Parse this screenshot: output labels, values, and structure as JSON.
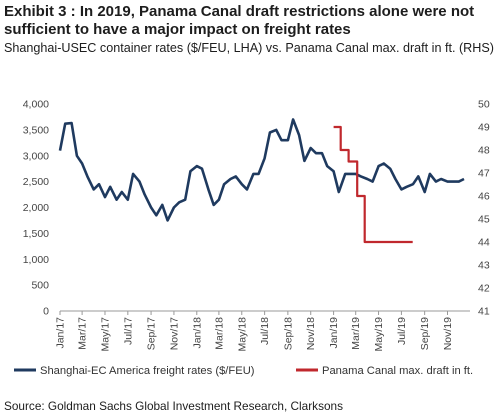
{
  "title": "Exhibit 3 : In 2019, Panama Canal draft restrictions alone were not sufficient to have a major impact on freight rates",
  "subtitle": "Shanghai-USEC container rates ($/FEU, LHA) vs. Panama Canal max. draft in ft. (RHS)",
  "source": "Source: Goldman Sachs Global Investment Research, Clarksons",
  "colors": {
    "freight": "#1f3a5f",
    "draft": "#c0282d",
    "axis": "#999999"
  },
  "chart_data": {
    "type": "line",
    "x_tick_labels": [
      "Jan/17",
      "Mar/17",
      "May/17",
      "Jul/17",
      "Sep/17",
      "Nov/17",
      "Jan/18",
      "Mar/18",
      "May/18",
      "Jul/18",
      "Sep/18",
      "Nov/18",
      "Jan/19",
      "Mar/19",
      "May/19",
      "Jul/19",
      "Sep/19",
      "Nov/19"
    ],
    "y_left": {
      "ticks": [
        "0",
        "500",
        "1,000",
        "1,500",
        "2,000",
        "2,500",
        "3,000",
        "3,500",
        "4,000"
      ],
      "min": 0,
      "max": 4000
    },
    "y_right": {
      "ticks": [
        "41",
        "42",
        "43",
        "44",
        "45",
        "46",
        "47",
        "48",
        "49",
        "50"
      ],
      "min": 41,
      "max": 50
    },
    "legend": [
      "Shanghai-EC America freight rates ($/FEU)",
      "Panama Canal max. draft in ft."
    ],
    "series": [
      {
        "name": "Shanghai-EC America freight rates ($/FEU)",
        "axis": "left",
        "x": [
          "2017-01-01",
          "2017-01-15",
          "2017-02-01",
          "2017-02-15",
          "2017-03-01",
          "2017-03-15",
          "2017-04-01",
          "2017-04-15",
          "2017-05-01",
          "2017-05-15",
          "2017-06-01",
          "2017-06-15",
          "2017-07-01",
          "2017-07-15",
          "2017-08-01",
          "2017-08-15",
          "2017-09-01",
          "2017-09-15",
          "2017-10-01",
          "2017-10-15",
          "2017-11-01",
          "2017-11-15",
          "2017-12-01",
          "2017-12-15",
          "2018-01-01",
          "2018-01-15",
          "2018-02-01",
          "2018-02-15",
          "2018-03-01",
          "2018-03-15",
          "2018-04-01",
          "2018-04-15",
          "2018-05-01",
          "2018-05-15",
          "2018-06-01",
          "2018-06-15",
          "2018-07-01",
          "2018-07-15",
          "2018-08-01",
          "2018-08-15",
          "2018-09-01",
          "2018-09-15",
          "2018-10-01",
          "2018-10-15",
          "2018-11-01",
          "2018-11-15",
          "2018-12-01",
          "2018-12-15",
          "2019-01-01",
          "2019-01-15",
          "2019-02-01",
          "2019-02-15",
          "2019-03-01",
          "2019-03-15",
          "2019-04-01",
          "2019-04-15",
          "2019-05-01",
          "2019-05-15",
          "2019-06-01",
          "2019-06-15",
          "2019-07-01",
          "2019-07-15",
          "2019-08-01",
          "2019-08-15",
          "2019-09-01",
          "2019-09-15",
          "2019-10-01",
          "2019-10-15",
          "2019-11-01",
          "2019-11-15",
          "2019-12-01",
          "2019-12-15"
        ],
        "values": [
          3100,
          3620,
          3630,
          3000,
          2850,
          2600,
          2350,
          2450,
          2200,
          2400,
          2150,
          2300,
          2150,
          2650,
          2500,
          2250,
          2000,
          1850,
          2050,
          1750,
          2000,
          2100,
          2150,
          2700,
          2800,
          2750,
          2350,
          2050,
          2150,
          2450,
          2550,
          2600,
          2450,
          2350,
          2650,
          2650,
          2950,
          3450,
          3500,
          3300,
          3300,
          3700,
          3400,
          2900,
          3150,
          3050,
          3050,
          2800,
          2700,
          2300,
          2650,
          2650,
          2650,
          2600,
          2550,
          2500,
          2800,
          2850,
          2750,
          2550,
          2350,
          2400,
          2450,
          2600,
          2300,
          2650,
          2500,
          2550,
          2500,
          2500,
          2500,
          2550
        ]
      },
      {
        "name": "Panama Canal max. draft in ft.",
        "axis": "right",
        "x": [
          "2019-01-01",
          "2019-01-20",
          "2019-01-20",
          "2019-02-10",
          "2019-02-10",
          "2019-03-05",
          "2019-03-05",
          "2019-03-25",
          "2019-03-25",
          "2019-04-15",
          "2019-04-15",
          "2019-07-31"
        ],
        "values": [
          49,
          49,
          48,
          48,
          47.5,
          47.5,
          46,
          46,
          44,
          44,
          44,
          44
        ]
      }
    ]
  }
}
